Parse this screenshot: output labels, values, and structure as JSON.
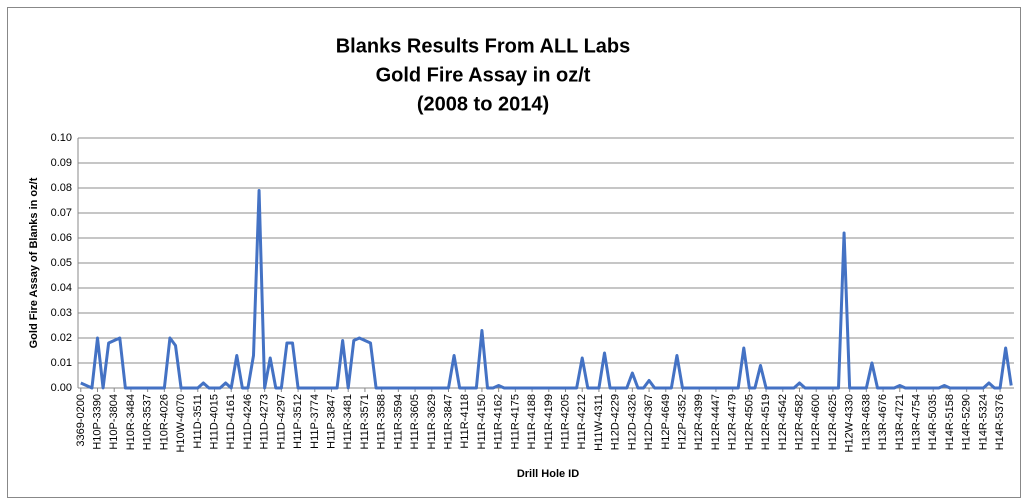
{
  "chart_data": {
    "type": "line",
    "title": [
      "Blanks Results From ALL Labs",
      "Gold Fire Assay in oz/t",
      "(2008 to 2014)"
    ],
    "x_label": "Drill Hole ID",
    "y_label": "Gold Fire Assay of Blanks in oz/t",
    "color": "#4472c4",
    "grid": true,
    "ylim": [
      0,
      0.1
    ],
    "yticks": [
      {
        "value": 0,
        "label": "0.00"
      },
      {
        "value": 0.01,
        "label": "0.01"
      },
      {
        "value": 0.02,
        "label": "0.02"
      },
      {
        "value": 0.03,
        "label": "0.03"
      },
      {
        "value": 0.04,
        "label": "0.04"
      },
      {
        "value": 0.05,
        "label": "0.05"
      },
      {
        "value": 0.06,
        "label": "0.06"
      },
      {
        "value": 0.07,
        "label": "0.07"
      },
      {
        "value": 0.08,
        "label": "0.08"
      },
      {
        "value": 0.09,
        "label": "0.09"
      },
      {
        "value": 0.1,
        "label": "0.10"
      }
    ],
    "categories": [
      "3369-0200",
      null,
      null,
      "H10P-3390",
      null,
      null,
      "H10P-3804",
      null,
      null,
      "H10R-3484",
      null,
      null,
      "H10R-3537",
      null,
      null,
      "H10R-4026",
      null,
      null,
      "H10W-4070",
      null,
      null,
      "H11D-3511",
      null,
      null,
      "H11D-4015",
      null,
      null,
      "H11D-4161",
      null,
      null,
      "H11D-4246",
      null,
      null,
      "H11D-4273",
      null,
      null,
      "H11D-4297",
      null,
      null,
      "H11P-3512",
      null,
      null,
      "H11P-3774",
      null,
      null,
      "H11P-3847",
      null,
      null,
      "H11R-3481",
      null,
      null,
      "H11R-3571",
      null,
      null,
      "H11R-3588",
      null,
      null,
      "H11R-3594",
      null,
      null,
      "H11R-3605",
      null,
      null,
      "H11R-3629",
      null,
      null,
      "H11R-3847",
      null,
      null,
      "H11R-4118",
      null,
      null,
      "H11R-4150",
      null,
      null,
      "H11R-4162",
      null,
      null,
      "H11R-4175",
      null,
      null,
      "H11R-4188",
      null,
      null,
      "H11R-4199",
      null,
      null,
      "H11R-4205",
      null,
      null,
      "H11R-4212",
      null,
      null,
      "H11W-4311",
      null,
      null,
      "H12D-4229",
      null,
      null,
      "H12D-4326",
      null,
      null,
      "H12D-4367",
      null,
      null,
      "H12P-4649",
      null,
      null,
      "H12P-4352",
      null,
      null,
      "H12R-4399",
      null,
      null,
      "H12R-4447",
      null,
      null,
      "H12R-4479",
      null,
      null,
      "H12R-4505",
      null,
      null,
      "H12R-4519",
      null,
      null,
      "H12R-4542",
      null,
      null,
      "H12R-4582",
      null,
      null,
      "H12R-4600",
      null,
      null,
      "H12R-4625",
      null,
      null,
      "H12W-4330",
      null,
      null,
      "H13R-4638",
      null,
      null,
      "H13R-4676",
      null,
      null,
      "H13R-4721",
      null,
      null,
      "H13R-4754",
      null,
      null,
      "H14R-5035",
      null,
      null,
      "H14R-5158",
      null,
      null,
      "H14R-5290",
      null,
      null,
      "H14R-5324",
      null,
      null,
      "H14R-5376",
      null,
      null
    ],
    "values": [
      0.002,
      0.001,
      0,
      0.02,
      0,
      0.018,
      0.019,
      0.02,
      0,
      0,
      0,
      0,
      0,
      0,
      0,
      0,
      0.02,
      0.017,
      0,
      0,
      0,
      0,
      0.002,
      0,
      0,
      0,
      0.002,
      0,
      0.013,
      0,
      0,
      0.013,
      0.079,
      0,
      0.012,
      0,
      0,
      0.018,
      0.018,
      0,
      0,
      0,
      0,
      0,
      0,
      0,
      0,
      0.019,
      0,
      0.019,
      0.02,
      0.019,
      0.018,
      0,
      0,
      0,
      0,
      0,
      0,
      0,
      0,
      0,
      0,
      0,
      0,
      0,
      0,
      0.013,
      0,
      0,
      0,
      0,
      0.023,
      0,
      0,
      0.001,
      0,
      0,
      0,
      0,
      0,
      0,
      0,
      0,
      0,
      0,
      0,
      0,
      0,
      0,
      0.012,
      0,
      0,
      0,
      0.014,
      0,
      0,
      0,
      0,
      0.006,
      0,
      0,
      0.003,
      0,
      0,
      0,
      0,
      0.013,
      0,
      0,
      0,
      0,
      0,
      0,
      0,
      0,
      0,
      0,
      0,
      0.016,
      0,
      0,
      0.009,
      0,
      0,
      0,
      0,
      0,
      0,
      0.002,
      0,
      0,
      0,
      0,
      0,
      0,
      0,
      0.062,
      0,
      0,
      0,
      0,
      0.01,
      0,
      0,
      0,
      0,
      0.001,
      0,
      0,
      0,
      0,
      0,
      0,
      0,
      0.001,
      0,
      0,
      0,
      0,
      0,
      0,
      0,
      0.002,
      0,
      0,
      0.016,
      0.001
    ]
  }
}
